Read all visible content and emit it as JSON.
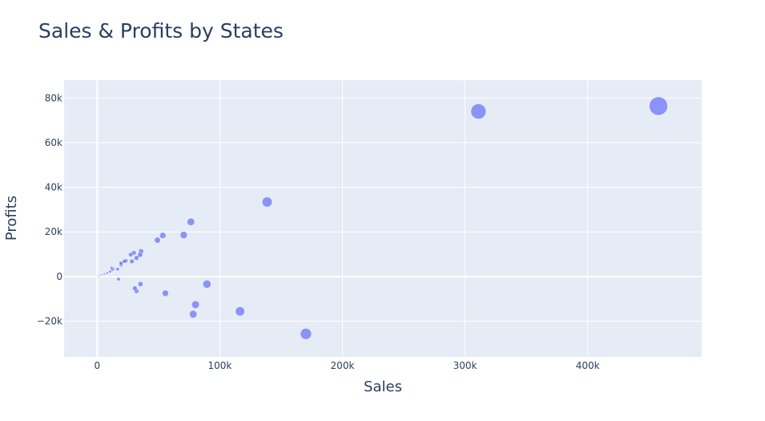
{
  "chart_data": {
    "type": "scatter",
    "title": "Sales & Profits by States",
    "xlabel": "Sales",
    "ylabel": "Profits",
    "xlim": [
      -27000,
      493000
    ],
    "ylim": [
      -36000,
      88000
    ],
    "x_ticks": [
      {
        "value": 0,
        "label": "0"
      },
      {
        "value": 100000,
        "label": "100k"
      },
      {
        "value": 200000,
        "label": "200k"
      },
      {
        "value": 300000,
        "label": "300k"
      },
      {
        "value": 400000,
        "label": "400k"
      }
    ],
    "y_ticks": [
      {
        "value": -20000,
        "label": "−20k"
      },
      {
        "value": 0,
        "label": "0"
      },
      {
        "value": 20000,
        "label": "20k"
      },
      {
        "value": 40000,
        "label": "40k"
      },
      {
        "value": 60000,
        "label": "60k"
      },
      {
        "value": 80000,
        "label": "80k"
      }
    ],
    "grid": true,
    "marker_color": "#636efa",
    "marker_opacity": 0.7,
    "background_color": "#e5ecf6",
    "points": [
      {
        "x": 457700,
        "y": 76400
      },
      {
        "x": 310900,
        "y": 74000
      },
      {
        "x": 170200,
        "y": -25700
      },
      {
        "x": 138600,
        "y": 33400
      },
      {
        "x": 116500,
        "y": -15600
      },
      {
        "x": 89500,
        "y": -3400
      },
      {
        "x": 80200,
        "y": -12600
      },
      {
        "x": 78300,
        "y": -16900
      },
      {
        "x": 76400,
        "y": 24500
      },
      {
        "x": 70600,
        "y": 18600
      },
      {
        "x": 55600,
        "y": -7500
      },
      {
        "x": 53500,
        "y": 18400
      },
      {
        "x": 49100,
        "y": 16300
      },
      {
        "x": 35800,
        "y": 11300
      },
      {
        "x": 35300,
        "y": -3400
      },
      {
        "x": 35000,
        "y": 9800
      },
      {
        "x": 32100,
        "y": 8300
      },
      {
        "x": 32100,
        "y": -6500
      },
      {
        "x": 30700,
        "y": -5300
      },
      {
        "x": 29900,
        "y": 10600
      },
      {
        "x": 28300,
        "y": 6800
      },
      {
        "x": 27400,
        "y": 9800
      },
      {
        "x": 23400,
        "y": 7100
      },
      {
        "x": 22200,
        "y": 6800
      },
      {
        "x": 19500,
        "y": 5200
      },
      {
        "x": 19400,
        "y": 6000
      },
      {
        "x": 17400,
        "y": -1200
      },
      {
        "x": 16700,
        "y": 3300
      },
      {
        "x": 13200,
        "y": 3500
      },
      {
        "x": 12300,
        "y": 3000
      },
      {
        "x": 11700,
        "y": 3900
      },
      {
        "x": 10500,
        "y": 2200
      },
      {
        "x": 8200,
        "y": 1600
      },
      {
        "x": 6000,
        "y": 1200
      },
      {
        "x": 4200,
        "y": 1000
      },
      {
        "x": 2800,
        "y": 600
      },
      {
        "x": 900,
        "y": 200
      }
    ]
  }
}
